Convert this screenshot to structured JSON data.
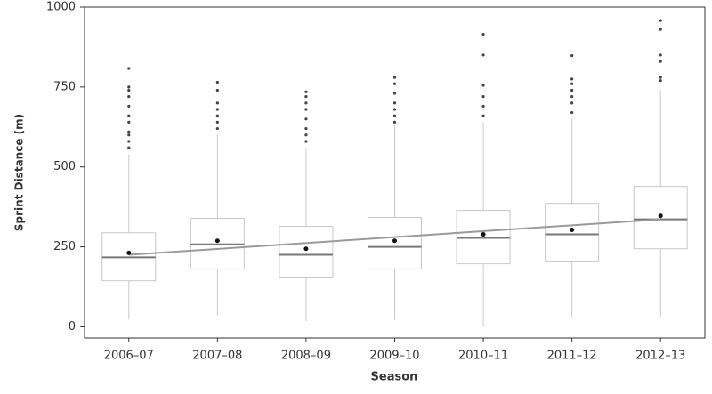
{
  "chart_data": {
    "type": "box",
    "xlabel": "Season",
    "ylabel": "Sprint Distance (m)",
    "categories": [
      "2006–07",
      "2007–08",
      "2008–09",
      "2009–10",
      "2010–11",
      "2011–12",
      "2012–13"
    ],
    "boxes": [
      {
        "min": 22,
        "q1": 144,
        "median": 217,
        "q3": 294,
        "max": 539,
        "mean": 231,
        "outliers": [
          560,
          580,
          600,
          610,
          640,
          660,
          690,
          720,
          740,
          750,
          808
        ]
      },
      {
        "min": 36,
        "q1": 181,
        "median": 258,
        "q3": 339,
        "max": 600,
        "mean": 269,
        "outliers": [
          620,
          640,
          660,
          680,
          700,
          740,
          765
        ]
      },
      {
        "min": 17,
        "q1": 153,
        "median": 225,
        "q3": 314,
        "max": 560,
        "mean": 244,
        "outliers": [
          580,
          600,
          620,
          650,
          680,
          700,
          720,
          735
        ]
      },
      {
        "min": 22,
        "q1": 181,
        "median": 250,
        "q3": 342,
        "max": 630,
        "mean": 269,
        "outliers": [
          640,
          660,
          680,
          700,
          730,
          760,
          780
        ]
      },
      {
        "min": 0,
        "q1": 197,
        "median": 278,
        "q3": 364,
        "max": 640,
        "mean": 289,
        "outliers": [
          660,
          690,
          720,
          755,
          850,
          915
        ]
      },
      {
        "min": 31,
        "q1": 203,
        "median": 289,
        "q3": 386,
        "max": 650,
        "mean": 303,
        "outliers": [
          670,
          700,
          720,
          740,
          760,
          775,
          848
        ]
      },
      {
        "min": 31,
        "q1": 244,
        "median": 336,
        "q3": 439,
        "max": 740,
        "mean": 347,
        "outliers": [
          770,
          780,
          830,
          850,
          930,
          958
        ]
      }
    ],
    "trend": {
      "start": 225,
      "end": 336
    },
    "box_color": "#c8c8c8",
    "median_color": "#777777",
    "trend_color": "#9a9a9a",
    "outlier_color": "#444444",
    "mean_color": "#111111",
    "ylim": [
      -35,
      1000
    ],
    "yticks": [
      0,
      250,
      500,
      750,
      1000
    ]
  }
}
